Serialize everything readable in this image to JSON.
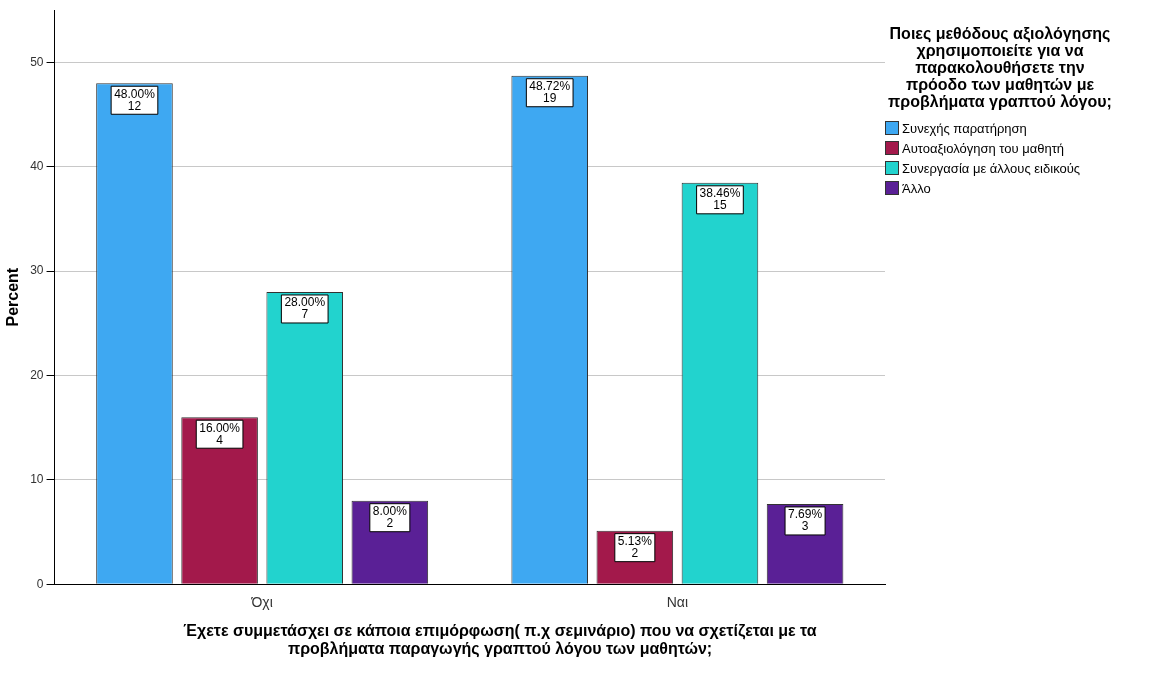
{
  "chart_data": {
    "type": "bar",
    "xlabel": "Έχετε συμμετάσχει σε κάποια επιμόρφωση( π.χ σεμινάριο) που να σχετίζεται με τα προβλήματα παραγωγής γραπτού λόγου των μαθητών;",
    "ylabel": "Percent",
    "legend_title": "Ποιες μεθόδους αξιολόγησης χρησιμοποιείτε για να παρακολουθήσετε την πρόοδο των μαθητών με προβλήματα γραπτού λόγου;",
    "categories": [
      "Όχι",
      "Ναι"
    ],
    "series": [
      {
        "name": "Συνεχής παρατήρηση",
        "color": "#3ea8f2",
        "values": [
          48.0,
          48.72
        ],
        "value_labels": [
          "48.00%\n12",
          "48.72%\n19"
        ]
      },
      {
        "name": "Αυτοαξιολόγηση του μαθητή",
        "color": "#a3194b",
        "values": [
          16.0,
          5.13
        ],
        "value_labels": [
          "16.00%\n4",
          "5.13%\n2"
        ]
      },
      {
        "name": "Συνεργασία με άλλους ειδικούς",
        "color": "#22d3ce",
        "values": [
          28.0,
          38.46
        ],
        "value_labels": [
          "28.00%\n7",
          "38.46%\n15"
        ]
      },
      {
        "name": "Άλλο",
        "color": "#5a2096",
        "values": [
          8.0,
          7.69
        ],
        "value_labels": [
          "8.00%\n2",
          "7.69%\n3"
        ]
      }
    ],
    "ylim": [
      0,
      55
    ],
    "yticks": [
      0,
      10,
      20,
      30,
      40,
      50
    ],
    "grid": "y",
    "legend": "top right"
  }
}
